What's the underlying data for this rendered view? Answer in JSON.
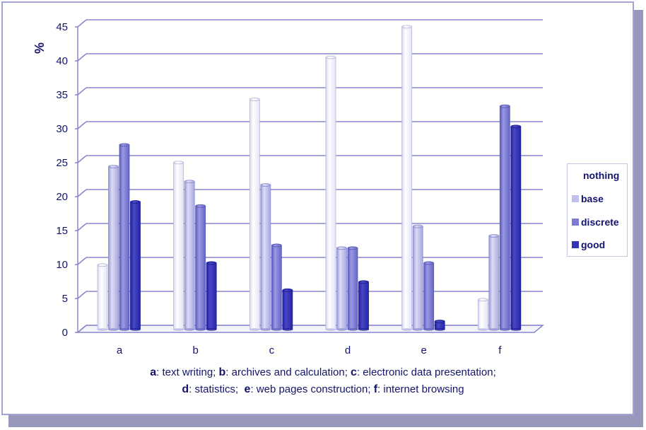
{
  "chart_data": {
    "type": "bar",
    "title": "",
    "xlabel": "",
    "ylabel": "%",
    "ylim": [
      0,
      45
    ],
    "yticks": [
      0,
      5,
      10,
      15,
      20,
      25,
      30,
      35,
      40,
      45
    ],
    "grid": true,
    "legend_position": "right",
    "categories": [
      "a",
      "b",
      "c",
      "d",
      "e",
      "f"
    ],
    "series": [
      {
        "name": "nothing",
        "color": "#ffffff",
        "values": [
          9.5,
          24.6,
          33.9,
          40.1,
          44.6,
          4.4
        ]
      },
      {
        "name": "base",
        "color": "#c0c0ec",
        "values": [
          24.0,
          21.8,
          21.3,
          12.0,
          15.2,
          13.8
        ]
      },
      {
        "name": "discrete",
        "color": "#7c7cd4",
        "values": [
          27.2,
          18.2,
          12.4,
          12.0,
          9.8,
          32.9
        ]
      },
      {
        "name": "good",
        "color": "#3434b4",
        "values": [
          18.8,
          9.8,
          5.8,
          7.0,
          1.2,
          29.9
        ]
      }
    ],
    "annotations": [
      "a: text writing; b: archives and calculation; c: electronic data presentation;",
      "d: statistics; e: web pages construction; f: internet browsing"
    ]
  },
  "axis": {
    "y_label": "%",
    "y_ticks": [
      "0",
      "5",
      "10",
      "15",
      "20",
      "25",
      "30",
      "35",
      "40",
      "45"
    ],
    "x_ticks": [
      "a",
      "b",
      "c",
      "d",
      "e",
      "f"
    ]
  },
  "legend": {
    "items": [
      {
        "label": "nothing",
        "color": "#ffffff"
      },
      {
        "label": "base",
        "color": "#c0c0ec"
      },
      {
        "label": "discrete",
        "color": "#7c7cd4"
      },
      {
        "label": "good",
        "color": "#3434b4"
      }
    ]
  },
  "caption": {
    "line1": [
      {
        "key": "a",
        "text": ": text writing; "
      },
      {
        "key": "b",
        "text": ": archives and calculation; "
      },
      {
        "key": "c",
        "text": ": electronic data presentation;"
      }
    ],
    "line2": [
      {
        "key": "d",
        "text": ": statistics;  "
      },
      {
        "key": "e",
        "text": ": web pages construction; "
      },
      {
        "key": "f",
        "text": ": internet browsing"
      }
    ]
  }
}
